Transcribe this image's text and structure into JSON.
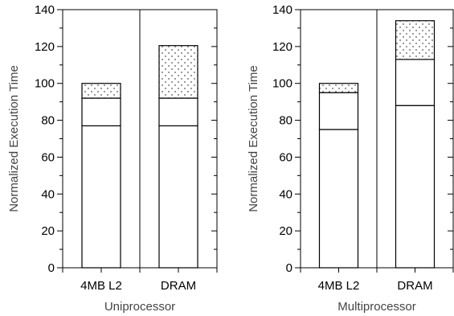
{
  "chart_data": [
    {
      "type": "bar",
      "stacked": true,
      "xlabel": "Uniprocessor",
      "ylabel": "Normalized Execution Time",
      "ylim": [
        0,
        140
      ],
      "yticks": [
        0,
        20,
        40,
        60,
        80,
        100,
        120,
        140
      ],
      "categories": [
        "4MB L2",
        "DRAM"
      ],
      "segments": [
        {
          "pattern": "plain",
          "values": [
            77,
            77
          ]
        },
        {
          "pattern": "plain",
          "values": [
            15,
            15
          ]
        },
        {
          "pattern": "dotted",
          "values": [
            8,
            28.5
          ]
        }
      ],
      "grid": false
    },
    {
      "type": "bar",
      "stacked": true,
      "xlabel": "Multiprocessor",
      "ylabel": "Normalized Execution Time",
      "ylim": [
        0,
        140
      ],
      "yticks": [
        0,
        20,
        40,
        60,
        80,
        100,
        120,
        140
      ],
      "categories": [
        "4MB L2",
        "DRAM"
      ],
      "segments": [
        {
          "pattern": "plain",
          "values": [
            75,
            88
          ]
        },
        {
          "pattern": "plain",
          "values": [
            20,
            25
          ]
        },
        {
          "pattern": "dotted",
          "values": [
            5,
            21
          ]
        }
      ],
      "grid": false
    }
  ]
}
